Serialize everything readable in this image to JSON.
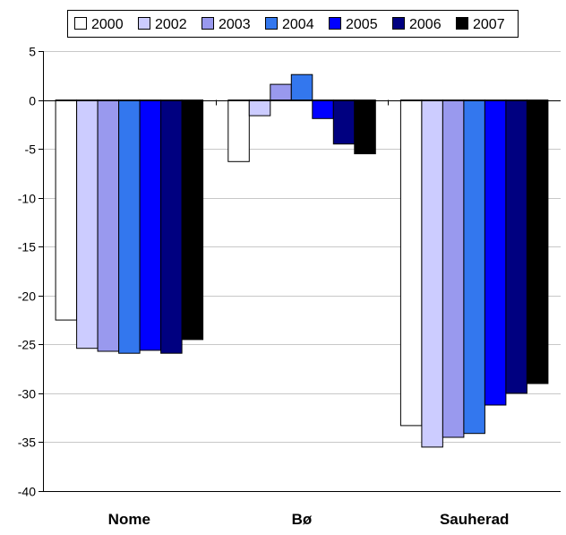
{
  "chart_data": {
    "type": "bar",
    "title": "",
    "xlabel": "",
    "ylabel": "",
    "categories": [
      "Nome",
      "Bø",
      "Sauherad"
    ],
    "ylim": [
      -40,
      5
    ],
    "yticks": [
      5,
      0,
      -5,
      -10,
      -15,
      -20,
      -25,
      -30,
      -35,
      -40
    ],
    "grid": true,
    "legend_position": "top",
    "series": [
      {
        "name": "2000",
        "color": "#ffffff",
        "values": [
          -22.5,
          -6.3,
          -33.3
        ]
      },
      {
        "name": "2002",
        "color": "#ccccff",
        "values": [
          -25.4,
          -1.6,
          -35.5
        ]
      },
      {
        "name": "2003",
        "color": "#9999ee",
        "values": [
          -25.7,
          1.6,
          -34.5
        ]
      },
      {
        "name": "2004",
        "color": "#3377ee",
        "values": [
          -25.9,
          2.6,
          -34.1
        ]
      },
      {
        "name": "2005",
        "color": "#0000ff",
        "values": [
          -25.6,
          -1.9,
          -31.2
        ]
      },
      {
        "name": "2006",
        "color": "#000080",
        "values": [
          -25.9,
          -4.5,
          -30.0
        ]
      },
      {
        "name": "2007",
        "color": "#000000",
        "values": [
          -24.5,
          -5.5,
          -29.0
        ]
      }
    ]
  }
}
